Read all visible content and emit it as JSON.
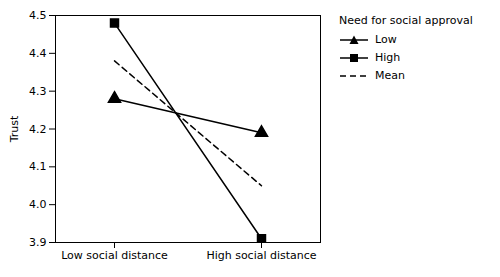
{
  "chart_data": {
    "type": "line",
    "categories": [
      "Low social distance",
      "High social distance"
    ],
    "ylabel": "Trust",
    "ylim": [
      3.9,
      4.5
    ],
    "yticks": [
      3.9,
      {
        "value": 4,
        "label": "4.0"
      },
      4.1,
      4.2,
      4.3,
      4.4,
      4.5
    ],
    "grid": false,
    "legend": "right",
    "legend_title": "Need for social approval",
    "series": [
      {
        "name": "Low",
        "color": "black",
        "marker": "triangle",
        "line_style": "solid",
        "values": [
          4.28,
          4.19
        ]
      },
      {
        "name": "High",
        "color": "black",
        "marker": "square",
        "line_style": "solid",
        "values": [
          4.48,
          3.91
        ]
      },
      {
        "name": "Mean",
        "color": "black",
        "line_style": "dashed",
        "values": [
          4.38,
          4.05
        ]
      }
    ]
  }
}
